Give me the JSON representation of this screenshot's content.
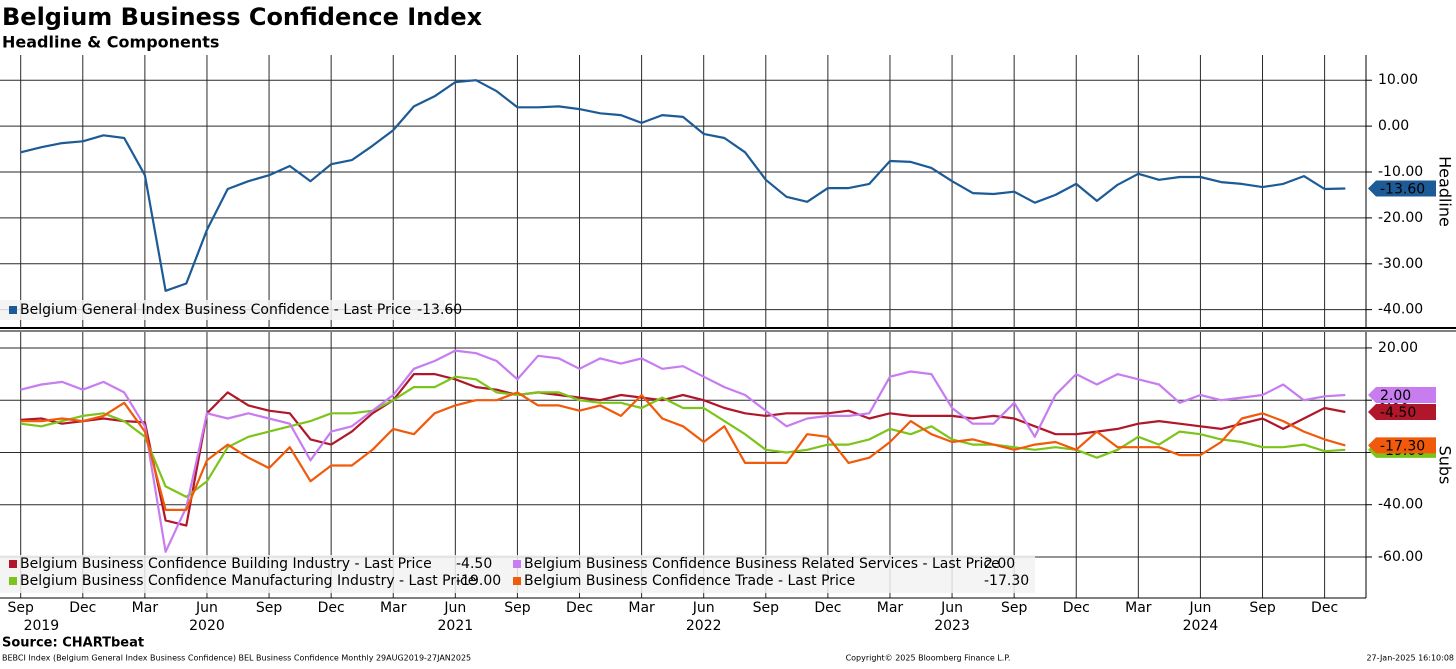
{
  "title": "Belgium Business Confidence Index",
  "subtitle": "Headline & Components",
  "chart_data": [
    {
      "type": "line",
      "axis_title": "Headline",
      "x": [
        "2019-09",
        "2019-10",
        "2019-11",
        "2019-12",
        "2020-01",
        "2020-02",
        "2020-03",
        "2020-04",
        "2020-05",
        "2020-06",
        "2020-07",
        "2020-08",
        "2020-09",
        "2020-10",
        "2020-11",
        "2020-12",
        "2021-01",
        "2021-02",
        "2021-03",
        "2021-04",
        "2021-05",
        "2021-06",
        "2021-07",
        "2021-08",
        "2021-09",
        "2021-10",
        "2021-11",
        "2021-12",
        "2022-01",
        "2022-02",
        "2022-03",
        "2022-04",
        "2022-05",
        "2022-06",
        "2022-07",
        "2022-08",
        "2022-09",
        "2022-10",
        "2022-11",
        "2022-12",
        "2023-01",
        "2023-02",
        "2023-03",
        "2023-04",
        "2023-05",
        "2023-06",
        "2023-07",
        "2023-08",
        "2023-09",
        "2023-10",
        "2023-11",
        "2023-12",
        "2024-01",
        "2024-02",
        "2024-03",
        "2024-04",
        "2024-05",
        "2024-06",
        "2024-07",
        "2024-08",
        "2024-09",
        "2024-10",
        "2024-11",
        "2024-12",
        "2025-01"
      ],
      "xlim": [
        "2019-08",
        "2025-02"
      ],
      "ylim": [
        -44,
        15.5
      ],
      "yticks": [
        {
          "value": 10,
          "label": "10.00"
        },
        {
          "value": 0,
          "label": "0.00"
        },
        {
          "value": -10,
          "label": "-10.00"
        },
        {
          "value": -20,
          "label": "-20.00"
        },
        {
          "value": -30,
          "label": "-30.00"
        },
        {
          "value": -40,
          "label": "-40.00"
        }
      ],
      "series": [
        {
          "name": "Belgium General Index Business Confidence - Last Price",
          "color": "#1c5b96",
          "last_label": "-13.60",
          "text_color": "#ffffff",
          "values": [
            -5.7,
            -4.6,
            -3.7,
            -3.3,
            -2.0,
            -2.6,
            -10.7,
            -35.9,
            -34.3,
            -22.6,
            -13.7,
            -12.0,
            -10.7,
            -8.7,
            -12.0,
            -8.3,
            -7.4,
            -4.3,
            -0.9,
            4.3,
            6.5,
            9.6,
            10.0,
            7.6,
            4.1,
            4.1,
            4.3,
            3.7,
            2.8,
            2.4,
            0.7,
            2.4,
            2.0,
            -1.7,
            -2.6,
            -5.7,
            -11.7,
            -15.4,
            -16.5,
            -13.5,
            -13.5,
            -12.6,
            -7.6,
            -7.8,
            -9.1,
            -12.0,
            -14.6,
            -14.8,
            -14.3,
            -16.7,
            -15.0,
            -12.6,
            -16.3,
            -12.8,
            -10.4,
            -11.7,
            -11.1,
            -11.1,
            -12.2,
            -12.6,
            -13.3,
            -12.6,
            -10.9,
            -13.7,
            -13.6
          ]
        }
      ]
    },
    {
      "type": "line",
      "axis_title": "Subs",
      "x": [
        "2019-09",
        "2019-10",
        "2019-11",
        "2019-12",
        "2020-01",
        "2020-02",
        "2020-03",
        "2020-04",
        "2020-05",
        "2020-06",
        "2020-07",
        "2020-08",
        "2020-09",
        "2020-10",
        "2020-11",
        "2020-12",
        "2021-01",
        "2021-02",
        "2021-03",
        "2021-04",
        "2021-05",
        "2021-06",
        "2021-07",
        "2021-08",
        "2021-09",
        "2021-10",
        "2021-11",
        "2021-12",
        "2022-01",
        "2022-02",
        "2022-03",
        "2022-04",
        "2022-05",
        "2022-06",
        "2022-07",
        "2022-08",
        "2022-09",
        "2022-10",
        "2022-11",
        "2022-12",
        "2023-01",
        "2023-02",
        "2023-03",
        "2023-04",
        "2023-05",
        "2023-06",
        "2023-07",
        "2023-08",
        "2023-09",
        "2023-10",
        "2023-11",
        "2023-12",
        "2024-01",
        "2024-02",
        "2024-03",
        "2024-04",
        "2024-05",
        "2024-06",
        "2024-07",
        "2024-08",
        "2024-09",
        "2024-10",
        "2024-11",
        "2024-12",
        "2025-01"
      ],
      "xlim": [
        "2019-08",
        "2025-02"
      ],
      "xticks": [
        {
          "value": "2019-09",
          "label": "Sep"
        },
        {
          "value": "2019-12",
          "label": "Dec"
        },
        {
          "value": "2020-03",
          "label": "Mar"
        },
        {
          "value": "2020-06",
          "label": "Jun"
        },
        {
          "value": "2020-09",
          "label": "Sep"
        },
        {
          "value": "2020-12",
          "label": "Dec"
        },
        {
          "value": "2021-03",
          "label": "Mar"
        },
        {
          "value": "2021-06",
          "label": "Jun"
        },
        {
          "value": "2021-09",
          "label": "Sep"
        },
        {
          "value": "2021-12",
          "label": "Dec"
        },
        {
          "value": "2022-03",
          "label": "Mar"
        },
        {
          "value": "2022-06",
          "label": "Jun"
        },
        {
          "value": "2022-09",
          "label": "Sep"
        },
        {
          "value": "2022-12",
          "label": "Dec"
        },
        {
          "value": "2023-03",
          "label": "Mar"
        },
        {
          "value": "2023-06",
          "label": "Jun"
        },
        {
          "value": "2023-09",
          "label": "Sep"
        },
        {
          "value": "2023-12",
          "label": "Dec"
        },
        {
          "value": "2024-03",
          "label": "Mar"
        },
        {
          "value": "2024-06",
          "label": "Jun"
        },
        {
          "value": "2024-09",
          "label": "Sep"
        },
        {
          "value": "2024-12",
          "label": "Dec"
        }
      ],
      "year_labels": [
        {
          "value": "2019-10",
          "label": "2019"
        },
        {
          "value": "2020-06",
          "label": "2020"
        },
        {
          "value": "2021-06",
          "label": "2021"
        },
        {
          "value": "2022-06",
          "label": "2022"
        },
        {
          "value": "2023-06",
          "label": "2023"
        },
        {
          "value": "2024-06",
          "label": "2024"
        }
      ],
      "ylim": [
        -75.7,
        26.1
      ],
      "yticks": [
        {
          "value": 20,
          "label": "20.00"
        },
        {
          "value": 0,
          "label": "0.00"
        },
        {
          "value": -20,
          "label": "-20.00"
        },
        {
          "value": -40,
          "label": "-40.00"
        },
        {
          "value": -60,
          "label": "-60.00"
        }
      ],
      "series": [
        {
          "name": "Belgium Business Confidence Building Industry - Last Price",
          "color": "#b0172a",
          "last_label": "-4.50",
          "text_color": "#ffffff",
          "values": [
            -7.5,
            -7,
            -9,
            -8,
            -7,
            -8,
            -8.5,
            -46,
            -48,
            -5,
            3,
            -2,
            -4,
            -5,
            -15,
            -17,
            -12,
            -5,
            0,
            10,
            10,
            8,
            5,
            4,
            2,
            3,
            2,
            1,
            0,
            2,
            1,
            0,
            2,
            0,
            -3,
            -5,
            -6,
            -5,
            -5,
            -5,
            -4,
            -7,
            -5,
            -6,
            -6,
            -6,
            -7,
            -6,
            -7,
            -10,
            -13,
            -13,
            -12,
            -11,
            -9,
            -8,
            -9,
            -10,
            -11,
            -9,
            -7,
            -11,
            -7,
            -3,
            -4.5
          ]
        },
        {
          "name": "Belgium Business Confidence Manufacturing Industry - Last Price",
          "color": "#7cc41a",
          "last_label": "-19.00",
          "text_color": "#000000",
          "values": [
            -9,
            -10,
            -8,
            -6,
            -5,
            -8,
            -14,
            -33,
            -37,
            -31,
            -18,
            -14,
            -12,
            -10,
            -8,
            -5,
            -5,
            -4,
            0,
            5,
            5,
            9,
            8,
            3,
            2,
            3,
            3,
            0,
            -1,
            -1,
            -3,
            1,
            -3,
            -3,
            -8,
            -13,
            -19,
            -20,
            -19,
            -17,
            -17,
            -15,
            -11,
            -13,
            -10,
            -15,
            -17,
            -17,
            -18,
            -19,
            -18,
            -19,
            -22,
            -19,
            -14,
            -17,
            -12,
            -13,
            -15,
            -16,
            -18,
            -18,
            -17,
            -19.5,
            -19
          ]
        },
        {
          "name": "Belgium Business Confidence Business Related Services - Last Price",
          "color": "#c77cf0",
          "last_label": "2.00",
          "text_color": "#000000",
          "values": [
            4,
            6,
            7,
            4,
            7,
            3,
            -10,
            -58,
            -41,
            -5,
            -7,
            -5,
            -7,
            -9,
            -23,
            -12,
            -10,
            -4,
            2,
            12,
            15,
            19,
            18,
            15,
            8,
            17,
            16,
            12,
            16,
            14,
            16,
            12,
            13,
            9,
            5,
            2,
            -4,
            -10,
            -7,
            -6,
            -6,
            -5,
            9,
            11,
            10,
            -3,
            -9,
            -9,
            -1,
            -14,
            2,
            10,
            6,
            10,
            8,
            6,
            -1,
            2,
            0,
            1,
            2,
            6,
            0,
            1.5,
            2
          ]
        },
        {
          "name": "Belgium Business Confidence Trade - Last Price",
          "color": "#f05a0a",
          "last_label": "-17.30",
          "text_color": "#000000",
          "values": [
            -8,
            -8,
            -7,
            -8,
            -6,
            -1,
            -12,
            -42,
            -42,
            -23,
            -17,
            -22,
            -26,
            -18,
            -31,
            -25,
            -25,
            -19,
            -11,
            -13,
            -5,
            -2,
            0,
            0,
            3,
            -2,
            -2,
            -4,
            -2,
            -6,
            2,
            -7,
            -10,
            -16,
            -10,
            -24,
            -24,
            -24,
            -13,
            -14,
            -24,
            -22,
            -16,
            -8,
            -13,
            -16,
            -15,
            -17,
            -19,
            -17,
            -16,
            -19,
            -12,
            -18,
            -18,
            -18,
            -21,
            -21,
            -16,
            -7,
            -5,
            -8,
            -12,
            -15,
            -17.3
          ]
        }
      ]
    }
  ],
  "footer": {
    "source": "Source: CHARTbeat",
    "description": "BEBCI Index (Belgium General Index Business Confidence) BEL Business Confidence  Monthly 29AUG2019-27JAN2025",
    "copyright": "Copyright© 2025 Bloomberg Finance L.P.",
    "timestamp": "27-Jan-2025 16:10:08"
  }
}
